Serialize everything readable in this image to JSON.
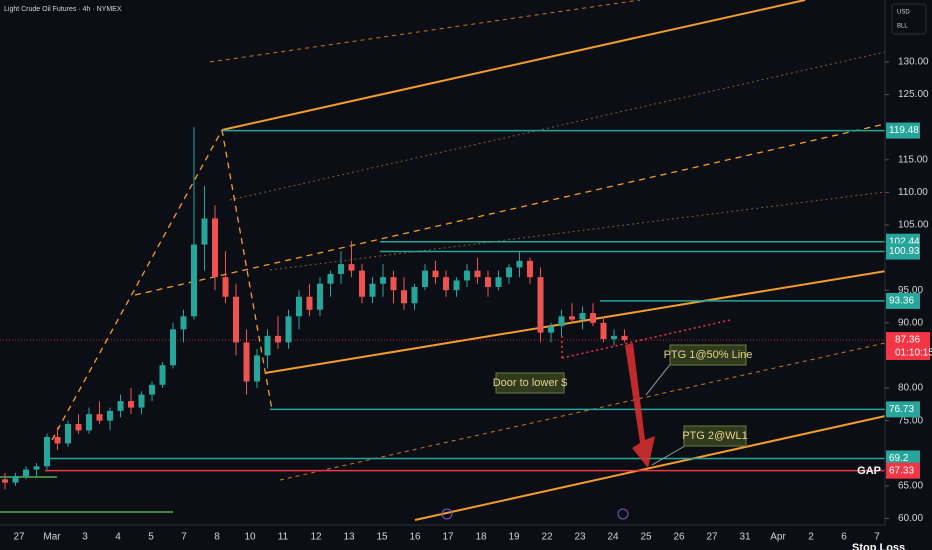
{
  "chart_data": {
    "type": "candlestick",
    "title": "Light Crude Oil Futures · 4h · NYMEX",
    "currency": "USD",
    "unit": "BLL",
    "up_color": "#26a69a",
    "down_color": "#ef5350",
    "ylim": [
      59,
      139.5
    ],
    "yticks": [
      {
        "value": 60,
        "label": "60.00"
      },
      {
        "value": 65,
        "label": "65.00"
      },
      {
        "value": 75,
        "label": "75.00"
      },
      {
        "value": 80,
        "label": "80.00"
      },
      {
        "value": 90,
        "label": "90.00"
      },
      {
        "value": 95,
        "label": "95.00"
      },
      {
        "value": 105,
        "label": "105.00"
      },
      {
        "value": 110,
        "label": "110.00"
      },
      {
        "value": 115,
        "label": "115.00"
      },
      {
        "value": 125,
        "label": "125.00"
      },
      {
        "value": 130,
        "label": "130.00"
      }
    ],
    "categories": [
      "27",
      "Mar",
      "3",
      "4",
      "5",
      "7",
      "8",
      "10",
      "11",
      "12",
      "13",
      "15",
      "16",
      "17",
      "18",
      "19",
      "22",
      "23",
      "24",
      "25",
      "26",
      "27",
      "31",
      "Apr",
      "2",
      "6",
      "7"
    ],
    "open": [
      66,
      65.5,
      66.5,
      67.5,
      68,
      72.5,
      71.5,
      74.5,
      73.5,
      76,
      75,
      76.5,
      78,
      77,
      79,
      80.5,
      83.5,
      89,
      91,
      102,
      106,
      97,
      94,
      87,
      81,
      85,
      88,
      87,
      91,
      94,
      92,
      96,
      97.5,
      99,
      98,
      94,
      96,
      97,
      95,
      93,
      95.5,
      98,
      97,
      95,
      96.5,
      98,
      97,
      95.5,
      97,
      98.5,
      99.5,
      97,
      88.5,
      89.5,
      91,
      90.5,
      91.5,
      90,
      87.5,
      88
    ],
    "high": [
      67,
      67,
      68,
      68.5,
      73,
      74,
      75,
      76,
      77,
      78,
      77,
      79,
      80,
      79.5,
      81,
      84,
      90,
      92,
      120,
      111,
      108,
      101,
      96,
      89,
      86,
      89,
      91,
      92,
      95,
      96,
      97,
      98,
      101,
      102.5,
      99,
      97,
      99,
      98,
      97,
      96,
      99,
      99.5,
      98,
      97,
      99,
      100,
      98,
      98,
      99,
      101,
      100,
      98.5,
      90,
      92,
      93,
      92.5,
      93,
      91,
      89,
      89
    ],
    "low": [
      64.5,
      65,
      66,
      66.5,
      67.5,
      70.5,
      71,
      73,
      73,
      74.5,
      73.5,
      75.5,
      76,
      76,
      78,
      80,
      83,
      87,
      90.5,
      98,
      95,
      93,
      85,
      79,
      80,
      83,
      86,
      86,
      89,
      91,
      91,
      94,
      96,
      97,
      93,
      93,
      94,
      93,
      92,
      92,
      95,
      96,
      94,
      94,
      95.5,
      96,
      94,
      95,
      96,
      97,
      96,
      87,
      87,
      88,
      90,
      89,
      89.5,
      87,
      86.5,
      87
    ],
    "close": [
      65.5,
      66.5,
      67.5,
      68,
      72.5,
      71.5,
      74.5,
      73.5,
      76,
      75,
      76.5,
      78,
      77,
      79,
      80.5,
      83.5,
      89,
      91,
      102,
      106,
      97,
      94,
      87,
      81,
      85,
      88,
      87,
      91,
      94,
      92,
      96,
      97.5,
      99,
      98,
      94,
      96,
      97,
      95,
      93,
      95.5,
      98,
      97,
      95,
      96.5,
      98,
      97,
      95.5,
      97,
      98.5,
      99.5,
      97,
      88.5,
      89.5,
      91,
      90.5,
      91.5,
      90,
      87.5,
      88,
      87.36
    ],
    "levels": [
      {
        "value": 119.48,
        "color": "#26a69a"
      },
      {
        "value": 102.44,
        "color": "#26a69a"
      },
      {
        "value": 100.93,
        "color": "#26a69a"
      },
      {
        "value": 93.36,
        "color": "#26a69a"
      },
      {
        "value": 76.73,
        "color": "#26a69a"
      },
      {
        "value": 69.2,
        "color": "#26a69a"
      },
      {
        "value": 67.33,
        "color": "#f23645"
      }
    ],
    "current_price": {
      "value": 87.36,
      "countdown": "01:10:15",
      "color": "#f23645"
    },
    "annotations": {
      "ptg1": "PTG 1@50% Line",
      "door": "Door to lower $",
      "ptg2": "PTG 2@WL1",
      "gap": "GAP",
      "stop": "Stop Loss"
    }
  }
}
